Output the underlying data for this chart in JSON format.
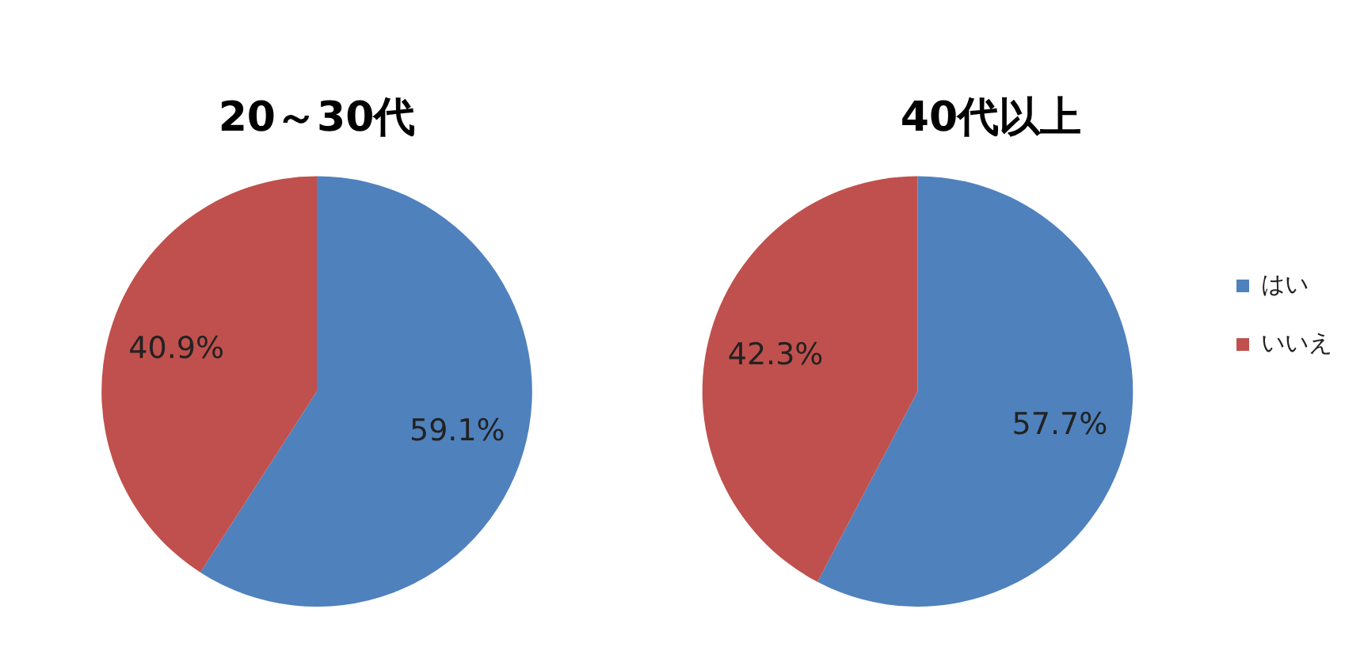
{
  "chart_data": [
    {
      "type": "pie",
      "title": "20～30代",
      "categories": [
        null,
        null
      ],
      "values": [
        59.1,
        40.9
      ],
      "colors": [
        "#4f81bd",
        "#c0504d"
      ],
      "value_labels": [
        "59.1%",
        "40.9%"
      ]
    },
    {
      "type": "pie",
      "title": "40代以上",
      "categories": [
        "はい",
        "いいえ"
      ],
      "values": [
        57.7,
        42.3
      ],
      "colors": [
        "#4f81bd",
        "#c0504d"
      ],
      "value_labels": [
        "57.7%",
        "42.3%"
      ],
      "legend": "right"
    }
  ]
}
